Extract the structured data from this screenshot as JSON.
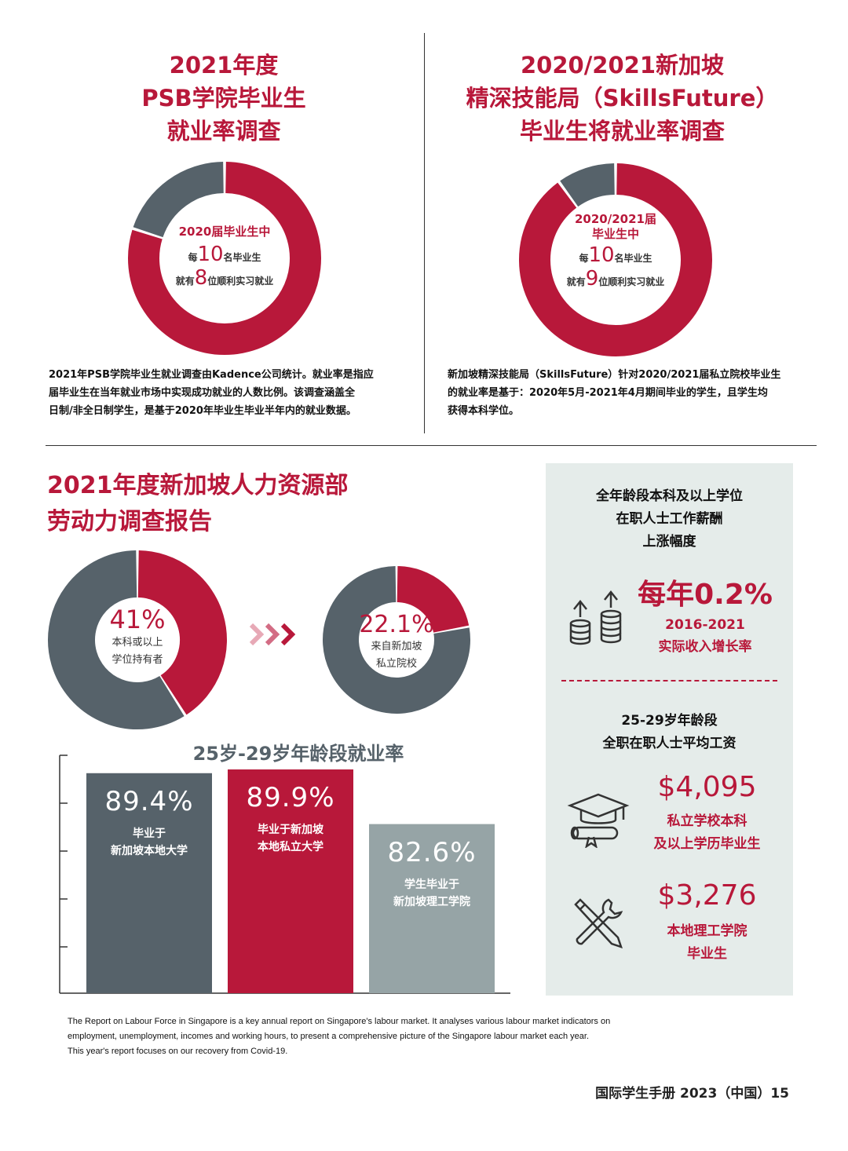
{
  "psb": {
    "title_lines": [
      "2021年度",
      "PSB学院毕业生",
      "就业率调查"
    ],
    "donut_heading": "2020届毕业生中",
    "donut_line1_pre": "每",
    "donut_line1_num": "10",
    "donut_line1_post": "名毕业生",
    "donut_line2_pre": "就有",
    "donut_line2_num": "8",
    "donut_line2_post": "位顺利实习就业",
    "desc_lines": [
      "2021年PSB学院毕业生就业调查由Kadence公司统计。就业率是指应",
      "届毕业生在当年就业市场中实现成功就业的人数比例。该调查涵盖全",
      "日制/非全日制学生，是基于2020年毕业生毕业半年内的就业数据。"
    ]
  },
  "skills": {
    "title_lines": [
      "2020/2021新加坡",
      "精深技能局（SkillsFuture）",
      "毕业生将就业率调查"
    ],
    "donut_heading_lines": [
      "2020/2021届",
      "毕业生中"
    ],
    "donut_line1_pre": "每",
    "donut_line1_num": "10",
    "donut_line1_post": "名毕业生",
    "donut_line2_pre": "就有",
    "donut_line2_num": "9",
    "donut_line2_post": "位顺利实习就业",
    "desc_lines": [
      "新加坡精深技能局（SkillsFuture）针对2020/2021届私立院校毕业生",
      "的就业率是基于：2020年5月-2021年4月期间毕业的学生，且学生均",
      "获得本科学位。"
    ]
  },
  "mom": {
    "title_lines": [
      "2021年度新加坡人力资源部",
      "劳动力调查报告"
    ],
    "donut1_value": "41%",
    "donut1_label_lines": [
      "本科或以上",
      "学位持有者"
    ],
    "donut2_value": "22.1%",
    "donut2_label_lines": [
      "来自新加坡",
      "私立院校"
    ],
    "bar_title": "25岁-29岁年龄段就业率"
  },
  "panel": {
    "section1_title_lines": [
      "全年龄段本科及以上学位",
      "在职人士工作薪酬",
      "上涨幅度"
    ],
    "growth_value": "每年0.2%",
    "growth_label_lines": [
      "2016-2021",
      "实际收入增长率"
    ],
    "section2_title_lines": [
      "25-29岁年龄段",
      "全职在职人士平均工资"
    ],
    "salary1_value": "$4,095",
    "salary1_label_lines": [
      "私立学校本科",
      "及以上学历毕业生"
    ],
    "salary2_value": "$3,276",
    "salary2_label_lines": [
      "本地理工学院",
      "毕业生"
    ]
  },
  "footer": {
    "note_lines": [
      "The Report on Labour Force in Singapore is a key annual report on Singapore's labour market. It analyses various labour market indicators on",
      "employment, unemployment, incomes and working hours, to present a comprehensive picture of the Singapore labour market each year.",
      "This year's report focuses on our recovery from Covid-19."
    ],
    "page_label": "国际学生手册 2023（中国）15"
  },
  "colors": {
    "red": "#b8183a",
    "dark_gray": "#56626a",
    "light_gray": "#96a4a6",
    "panel": "#e5ecea"
  },
  "chart_data": [
    {
      "type": "pie",
      "variant": "donut",
      "values": [
        8,
        2
      ],
      "colors": [
        "#b8183a",
        "#56626a"
      ]
    },
    {
      "type": "pie",
      "variant": "donut",
      "values": [
        9,
        1
      ],
      "colors": [
        "#b8183a",
        "#56626a"
      ]
    },
    {
      "type": "pie",
      "variant": "donut",
      "values": [
        41,
        59
      ],
      "colors": [
        "#b8183a",
        "#56626a"
      ]
    },
    {
      "type": "pie",
      "variant": "donut",
      "values": [
        22.1,
        77.9
      ],
      "colors": [
        "#b8183a",
        "#56626a"
      ]
    },
    {
      "type": "bar",
      "title": "25岁-29岁年龄段就业率",
      "categories": [
        "毕业于新加坡本地大学",
        "毕业于新加坡本地私立大学",
        "学生毕业于新加坡理工学院"
      ],
      "category_label_lines": [
        [
          "毕业于",
          "新加坡本地大学"
        ],
        [
          "毕业于新加坡",
          "本地私立大学"
        ],
        [
          "学生毕业于",
          "新加坡理工学院"
        ]
      ],
      "values": [
        89.4,
        89.9,
        82.6
      ],
      "value_labels": [
        "89.4%",
        "89.9%",
        "82.6%"
      ],
      "colors": [
        "#56626a",
        "#b8183a",
        "#96a4a6"
      ],
      "ylim": [
        60,
        92
      ]
    }
  ]
}
